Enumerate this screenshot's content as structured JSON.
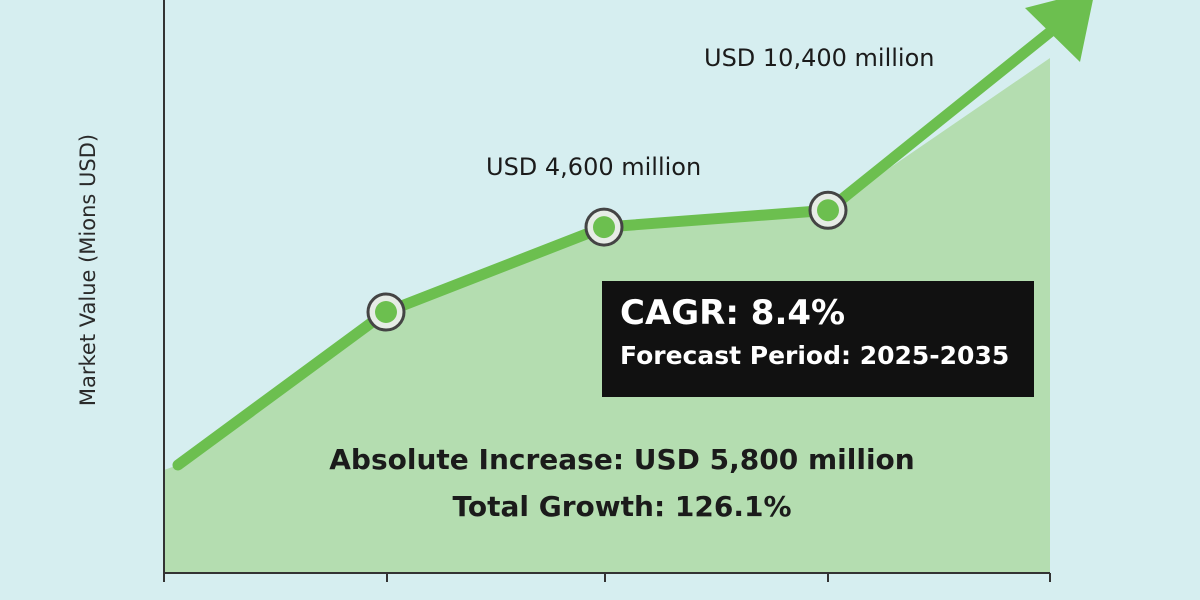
{
  "chart_data": {
    "type": "area",
    "title": "",
    "ylabel": "Market Value (Mions USD)",
    "xlabel": "",
    "x": [
      0,
      1,
      2,
      3,
      4
    ],
    "values": [
      4600,
      6780,
      7990,
      8230,
      10400
    ],
    "ylim": [
      4600,
      10400
    ],
    "grid": false,
    "annotations": {
      "start_value": "USD 4,600 million",
      "end_value": "USD 10,400 million",
      "cagr": "CAGR: 8.4%",
      "forecast": "Forecast Period: 2025-2035",
      "absolute_increase": "Absolute Increase: USD 5,800 million",
      "total_growth": "Total Growth: 126.1%"
    },
    "colors": {
      "line": "#6cbf4f",
      "fill": "#b4ddb0",
      "background": "#d6eef0",
      "box": "#111111"
    }
  }
}
